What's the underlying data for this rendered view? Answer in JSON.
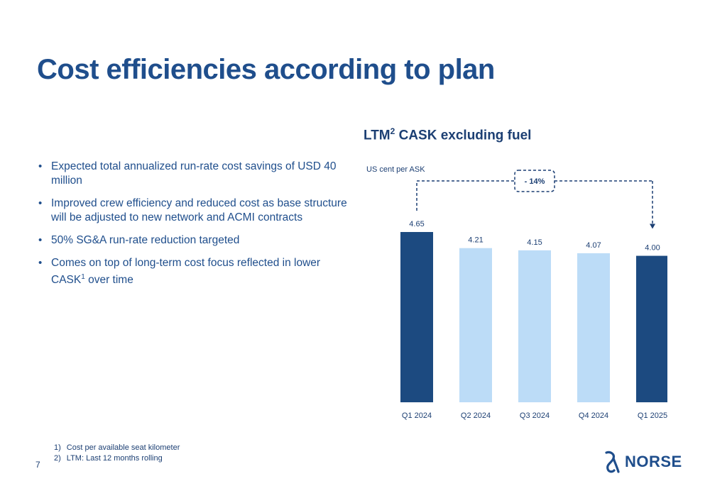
{
  "slide": {
    "title": "Cost efficiencies according to plan",
    "page_number": "7"
  },
  "bullets": [
    {
      "text": "Expected total annualized run-rate cost savings of USD 40 million",
      "sup": "",
      "suffix": ""
    },
    {
      "text": "Improved crew efficiency and reduced cost as base structure will be adjusted to new network and ACMI contracts",
      "sup": "",
      "suffix": ""
    },
    {
      "text": "50% SG&A run-rate reduction targeted",
      "sup": "",
      "suffix": ""
    },
    {
      "text": "Comes on top of long-term cost focus reflected in lower CASK",
      "sup": "1",
      "suffix": " over time"
    }
  ],
  "footnotes": [
    {
      "num": "1)",
      "text": "Cost per available seat kilometer"
    },
    {
      "num": "2)",
      "text": "LTM: Last 12 months rolling"
    }
  ],
  "logo": {
    "text": "NORSE"
  },
  "chart_data": {
    "type": "bar",
    "title_prefix": "LTM",
    "title_sup": "2",
    "title_suffix": " CASK excluding fuel",
    "ylabel": "US cent per ASK",
    "categories": [
      "Q1 2024",
      "Q2 2024",
      "Q3 2024",
      "Q4 2024",
      "Q1 2025"
    ],
    "values": [
      4.65,
      4.21,
      4.15,
      4.07,
      4.0
    ],
    "value_labels": [
      "4.65",
      "4.21",
      "4.15",
      "4.07",
      "4.00"
    ],
    "bar_colors": [
      "#1c4a80",
      "#bcdcf7",
      "#bcdcf7",
      "#bcdcf7",
      "#1c4a80"
    ],
    "ylim": [
      0,
      4.65
    ],
    "grid": false,
    "annotation": {
      "text": "- 14%",
      "from_category": "Q1 2024",
      "to_category": "Q1 2025"
    }
  }
}
